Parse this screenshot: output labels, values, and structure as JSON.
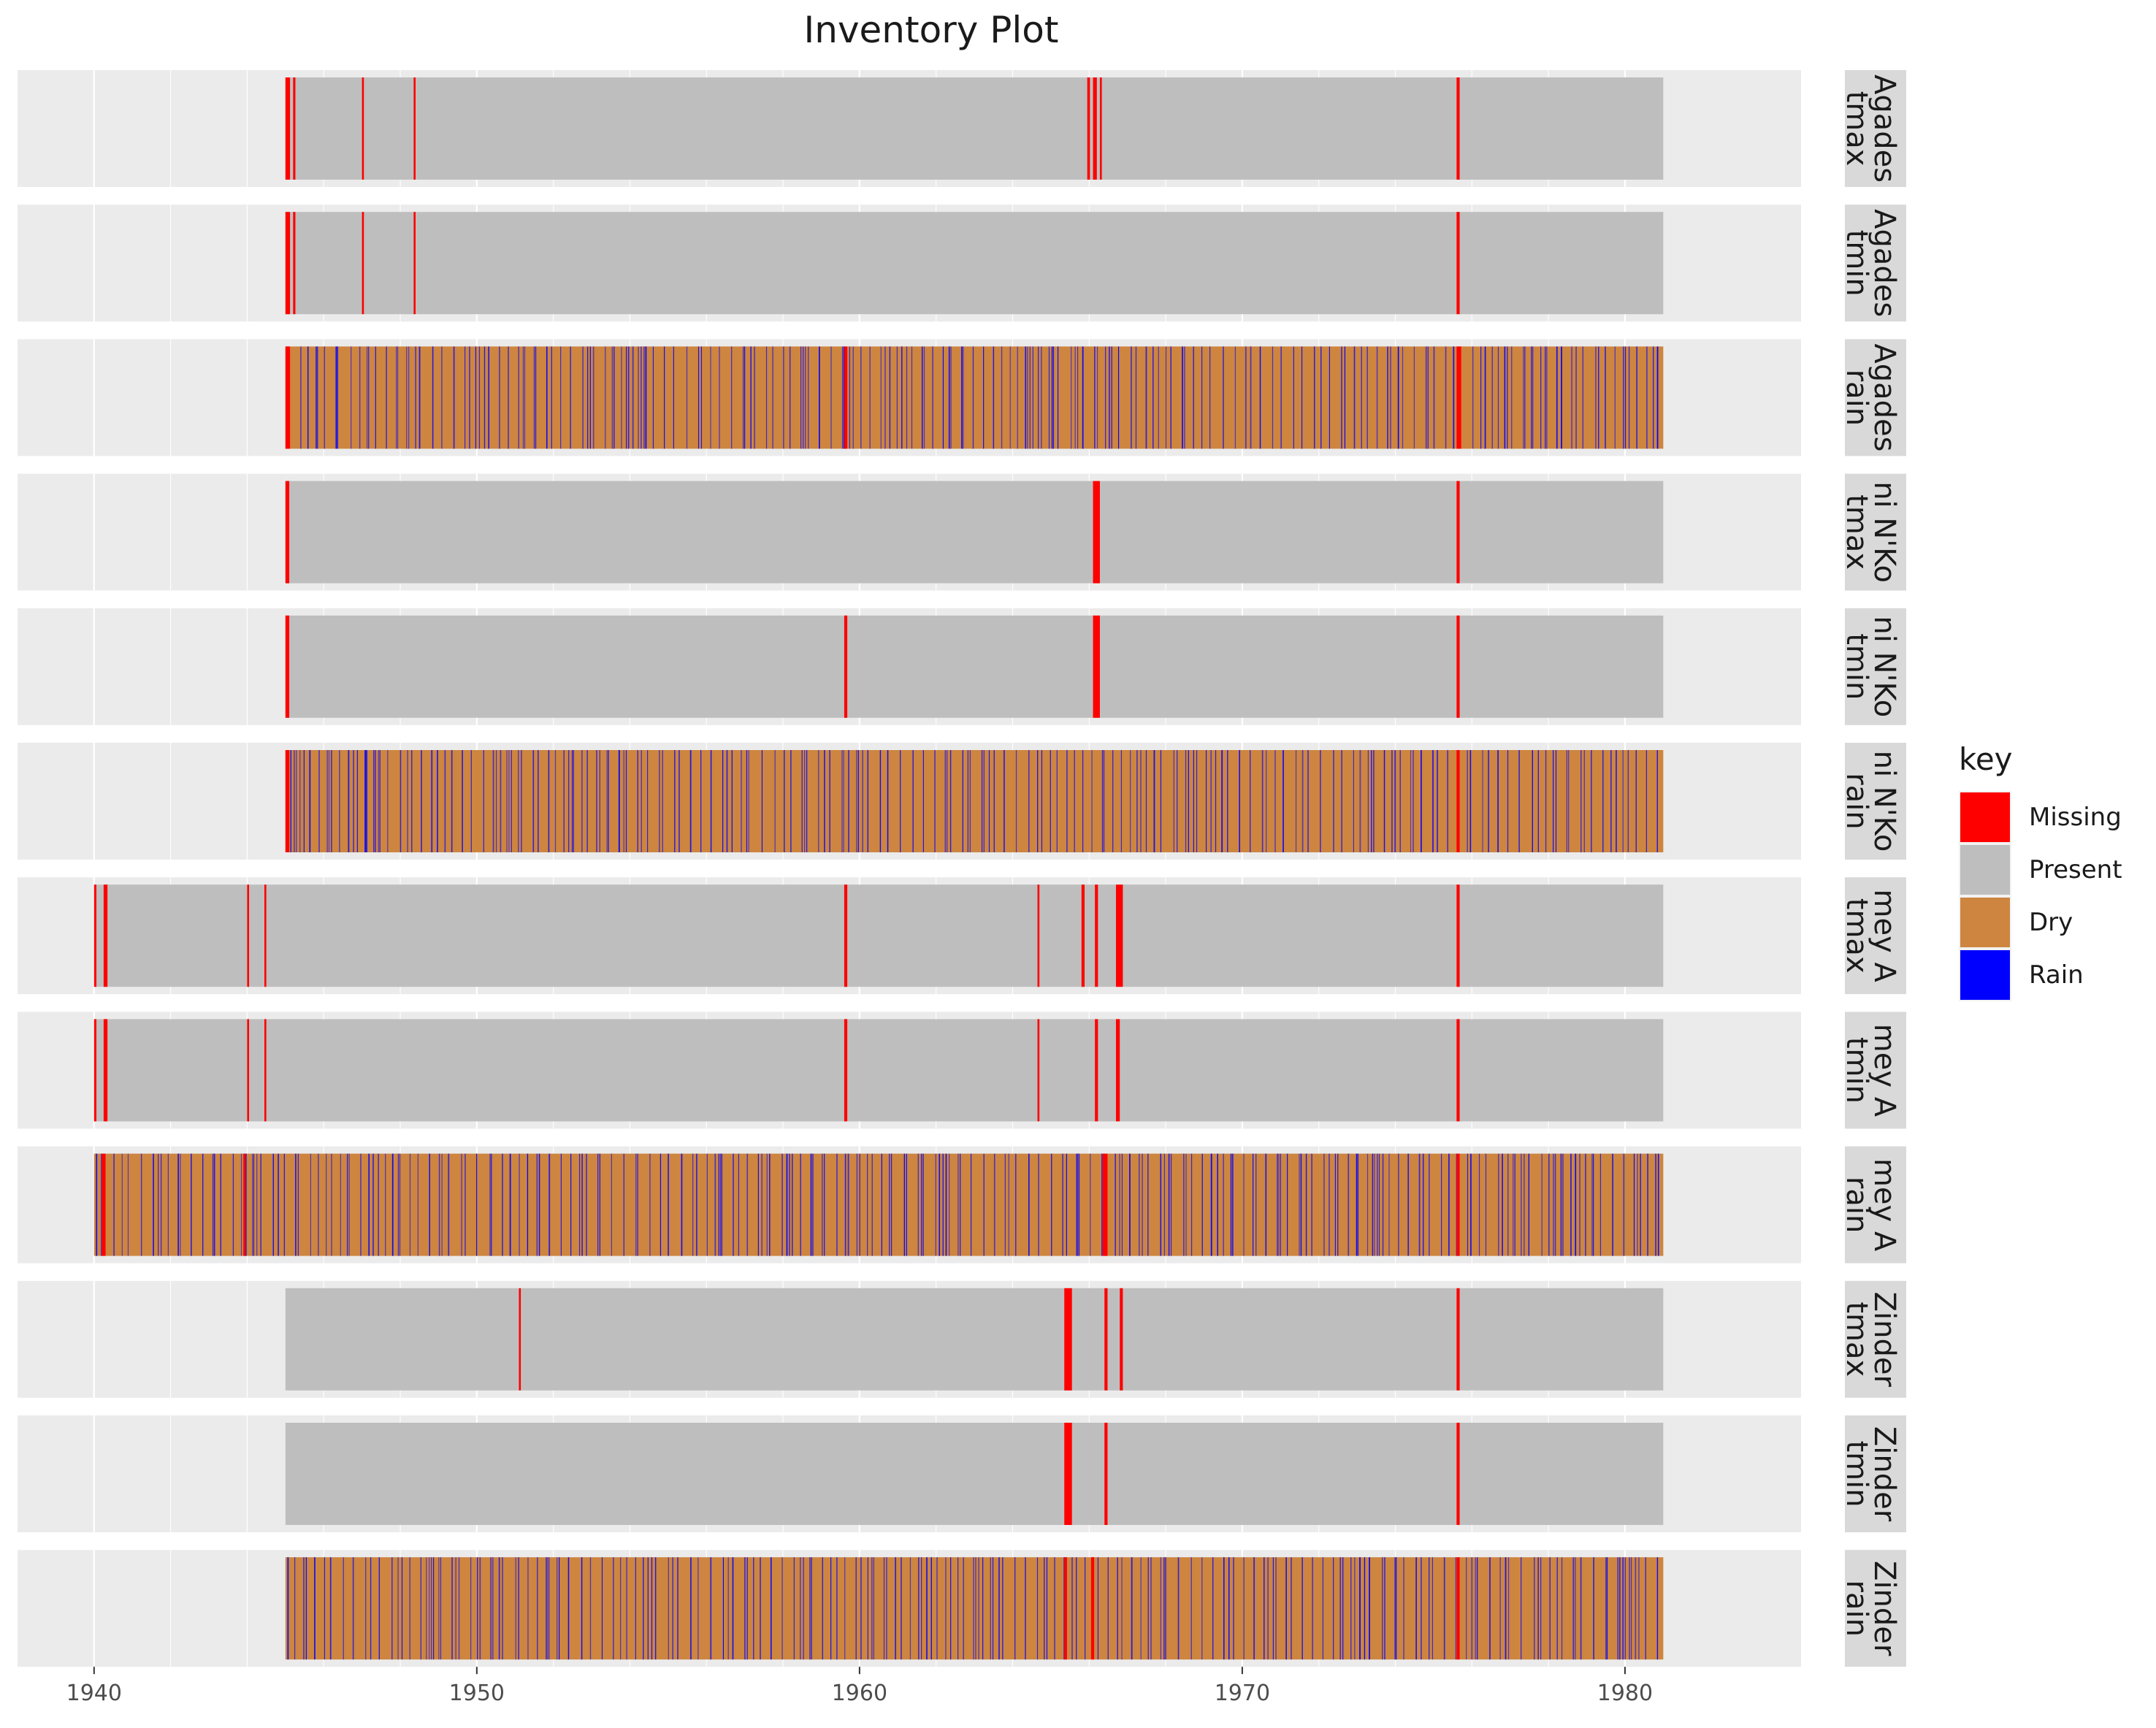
{
  "chart_data": {
    "type": "inventory",
    "title": "Inventory Plot",
    "xlabel": "",
    "ylabel": "",
    "x_ticks": [
      1940,
      1950,
      1960,
      1970,
      1980
    ],
    "xlim": [
      1938,
      1984.6
    ],
    "legend": {
      "title": "key",
      "position": "right",
      "items": [
        {
          "label": "Missing",
          "color": "#ff0000"
        },
        {
          "label": "Present",
          "color": "#bebebe"
        },
        {
          "label": "Dry",
          "color": "#cd853f"
        },
        {
          "label": "Rain",
          "color": "#0000ff"
        }
      ]
    },
    "colors": {
      "panel_background": "#ebebeb",
      "strip_background": "#d9d9d9",
      "grid": "#ffffff"
    },
    "panels": [
      {
        "strip": [
          "Agades",
          "tmax"
        ],
        "kind": "temp",
        "start": 1945.0,
        "end": 1981.0,
        "missing": [
          [
            1945.0,
            1945.12
          ],
          [
            1945.2,
            1945.26
          ],
          [
            1947.0,
            1947.05
          ],
          [
            1948.35,
            1948.4
          ],
          [
            1965.95,
            1966.02
          ],
          [
            1966.1,
            1966.2
          ],
          [
            1966.28,
            1966.33
          ],
          [
            1975.6,
            1975.68
          ]
        ]
      },
      {
        "strip": [
          "Agades",
          "tmin"
        ],
        "kind": "temp",
        "start": 1945.0,
        "end": 1981.0,
        "missing": [
          [
            1945.0,
            1945.12
          ],
          [
            1945.2,
            1945.26
          ],
          [
            1947.0,
            1947.05
          ],
          [
            1948.35,
            1948.4
          ],
          [
            1975.6,
            1975.68
          ]
        ]
      },
      {
        "strip": [
          "Agades",
          "rain"
        ],
        "kind": "rain",
        "start": 1945.0,
        "end": 1981.0,
        "missing": [
          [
            1945.0,
            1945.12
          ],
          [
            1959.6,
            1959.68
          ],
          [
            1975.6,
            1975.72
          ]
        ]
      },
      {
        "strip": [
          "ni N'Ko",
          "tmax"
        ],
        "kind": "temp",
        "start": 1945.0,
        "end": 1981.0,
        "missing": [
          [
            1945.0,
            1945.1
          ],
          [
            1966.1,
            1966.28
          ],
          [
            1975.6,
            1975.68
          ]
        ]
      },
      {
        "strip": [
          "ni N'Ko",
          "tmin"
        ],
        "kind": "temp",
        "start": 1945.0,
        "end": 1981.0,
        "missing": [
          [
            1945.0,
            1945.1
          ],
          [
            1959.6,
            1959.68
          ],
          [
            1966.1,
            1966.28
          ],
          [
            1975.6,
            1975.68
          ]
        ]
      },
      {
        "strip": [
          "ni N'Ko",
          "rain"
        ],
        "kind": "rain",
        "start": 1945.0,
        "end": 1981.0,
        "missing": [
          [
            1945.0,
            1945.1
          ],
          [
            1975.6,
            1975.68
          ]
        ]
      },
      {
        "strip": [
          "mey A",
          "tmax"
        ],
        "kind": "temp",
        "start": 1940.0,
        "end": 1981.0,
        "missing": [
          [
            1940.0,
            1940.06
          ],
          [
            1940.25,
            1940.35
          ],
          [
            1944.0,
            1944.05
          ],
          [
            1944.45,
            1944.5
          ],
          [
            1959.6,
            1959.68
          ],
          [
            1964.65,
            1964.7
          ],
          [
            1965.8,
            1965.88
          ],
          [
            1966.15,
            1966.23
          ],
          [
            1966.7,
            1966.88
          ],
          [
            1975.6,
            1975.68
          ]
        ]
      },
      {
        "strip": [
          "mey A",
          "tmin"
        ],
        "kind": "temp",
        "start": 1940.0,
        "end": 1981.0,
        "missing": [
          [
            1940.0,
            1940.06
          ],
          [
            1940.25,
            1940.35
          ],
          [
            1944.0,
            1944.05
          ],
          [
            1944.45,
            1944.5
          ],
          [
            1959.6,
            1959.68
          ],
          [
            1964.65,
            1964.7
          ],
          [
            1966.15,
            1966.23
          ],
          [
            1966.7,
            1966.8
          ],
          [
            1975.6,
            1975.68
          ]
        ]
      },
      {
        "strip": [
          "mey A",
          "rain"
        ],
        "kind": "rain",
        "start": 1940.0,
        "end": 1981.0,
        "missing": [
          [
            1940.2,
            1940.3
          ],
          [
            1943.9,
            1943.96
          ],
          [
            1966.35,
            1966.48
          ],
          [
            1975.6,
            1975.68
          ]
        ]
      },
      {
        "strip": [
          "Zinder",
          "tmax"
        ],
        "kind": "temp",
        "start": 1945.0,
        "end": 1981.0,
        "missing": [
          [
            1951.1,
            1951.15
          ],
          [
            1965.35,
            1965.55
          ],
          [
            1966.4,
            1966.48
          ],
          [
            1966.8,
            1966.88
          ],
          [
            1975.6,
            1975.68
          ]
        ]
      },
      {
        "strip": [
          "Zinder",
          "tmin"
        ],
        "kind": "temp",
        "start": 1945.0,
        "end": 1981.0,
        "missing": [
          [
            1965.35,
            1965.55
          ],
          [
            1966.4,
            1966.48
          ],
          [
            1975.6,
            1975.68
          ]
        ]
      },
      {
        "strip": [
          "Zinder",
          "rain"
        ],
        "kind": "rain",
        "start": 1945.0,
        "end": 1981.0,
        "missing": [
          [
            1965.35,
            1965.42
          ],
          [
            1966.05,
            1966.13
          ],
          [
            1975.6,
            1975.68
          ]
        ]
      }
    ]
  }
}
